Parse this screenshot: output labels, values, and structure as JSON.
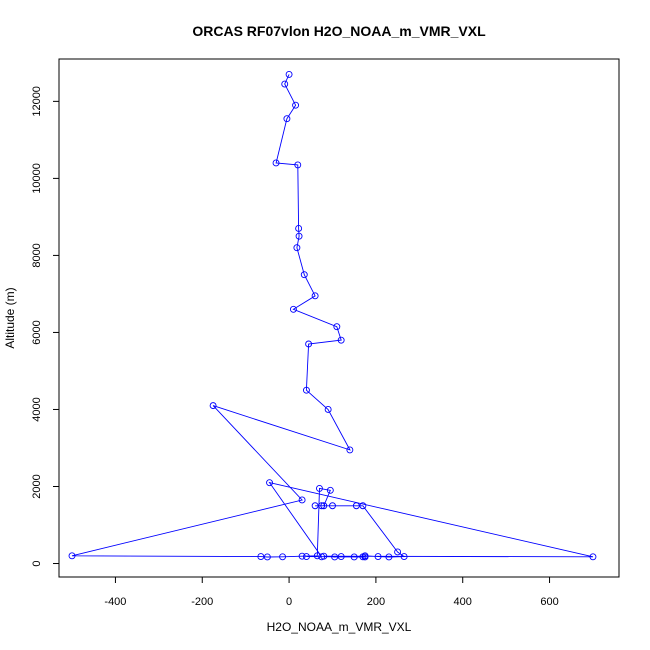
{
  "chart_data": {
    "type": "line",
    "title": "ORCAS RF07vlon H2O_NOAA_m_VMR_VXL",
    "xlabel": "H2O_NOAA_m_VMR_VXL",
    "ylabel": "Altitude (m)",
    "xlim": [
      -530,
      760
    ],
    "ylim": [
      -350,
      13100
    ],
    "xticks": [
      -400,
      -200,
      0,
      200,
      400,
      600
    ],
    "yticks": [
      0,
      2000,
      4000,
      6000,
      8000,
      10000,
      12000
    ],
    "grid": false,
    "legend": "none",
    "series": [
      {
        "color": "#0000ff",
        "marker": "open-circle",
        "points": [
          [
            0,
            12700
          ],
          [
            -10,
            12450
          ],
          [
            15,
            11900
          ],
          [
            -5,
            11550
          ],
          [
            -30,
            10400
          ],
          [
            20,
            10350
          ],
          [
            22,
            8700
          ],
          [
            23,
            8500
          ],
          [
            18,
            8200
          ],
          [
            35,
            7500
          ],
          [
            60,
            6950
          ],
          [
            10,
            6600
          ],
          [
            110,
            6150
          ],
          [
            120,
            5800
          ],
          [
            45,
            5700
          ],
          [
            40,
            4500
          ],
          [
            90,
            4000
          ],
          [
            140,
            2950
          ],
          [
            -175,
            4100
          ],
          [
            30,
            1650
          ],
          [
            -500,
            200
          ],
          [
            -65,
            180
          ],
          [
            -50,
            170
          ],
          [
            -15,
            175
          ],
          [
            30,
            190
          ],
          [
            65,
            200
          ],
          [
            70,
            1950
          ],
          [
            95,
            1900
          ],
          [
            80,
            1500
          ],
          [
            60,
            1500
          ],
          [
            75,
            1500
          ],
          [
            100,
            1500
          ],
          [
            155,
            1500
          ],
          [
            170,
            1500
          ],
          [
            250,
            300
          ],
          [
            265,
            180
          ],
          [
            230,
            170
          ],
          [
            205,
            180
          ],
          [
            175,
            200
          ],
          [
            150,
            170
          ],
          [
            120,
            180
          ],
          [
            105,
            170
          ],
          [
            80,
            190
          ],
          [
            700,
            175
          ],
          [
            -45,
            2100
          ],
          [
            75,
            175
          ],
          [
            170,
            175
          ],
          [
            175,
            170
          ],
          [
            40,
            180
          ]
        ]
      }
    ]
  }
}
